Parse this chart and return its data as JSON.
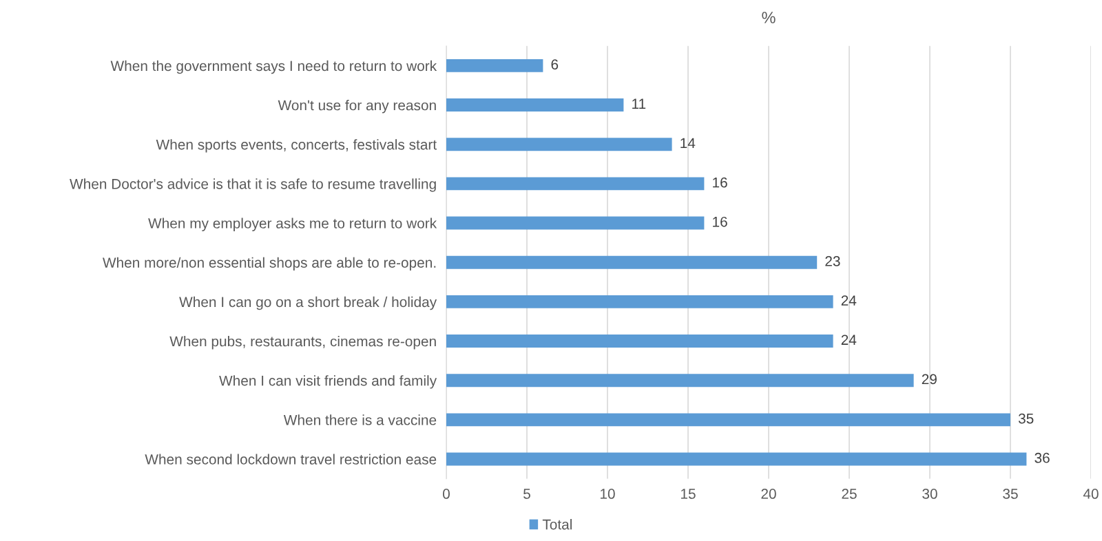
{
  "chart_data": {
    "type": "bar",
    "orientation": "horizontal",
    "title": "%",
    "categories": [
      "When the government says I need to return to work",
      "Won't use for any reason",
      "When sports events, concerts, festivals start",
      "When Doctor's advice is that it is safe to resume travelling",
      "When my employer asks me to return to work",
      "When more/non essential shops are able to re-open.",
      "When I can go on a short break / holiday",
      "When pubs, restaurants, cinemas re-open",
      "When I can visit friends and family",
      "When there is a vaccine",
      "When second lockdown travel restriction ease"
    ],
    "series": [
      {
        "name": "Total",
        "color": "#5b9bd5",
        "values": [
          6,
          11,
          14,
          16,
          16,
          23,
          24,
          24,
          29,
          35,
          36
        ]
      }
    ],
    "xlim": [
      0,
      40
    ],
    "xticks": [
      0,
      5,
      10,
      15,
      20,
      25,
      30,
      35,
      40
    ],
    "grid": "x",
    "legend": "bottom",
    "data_labels": true
  }
}
